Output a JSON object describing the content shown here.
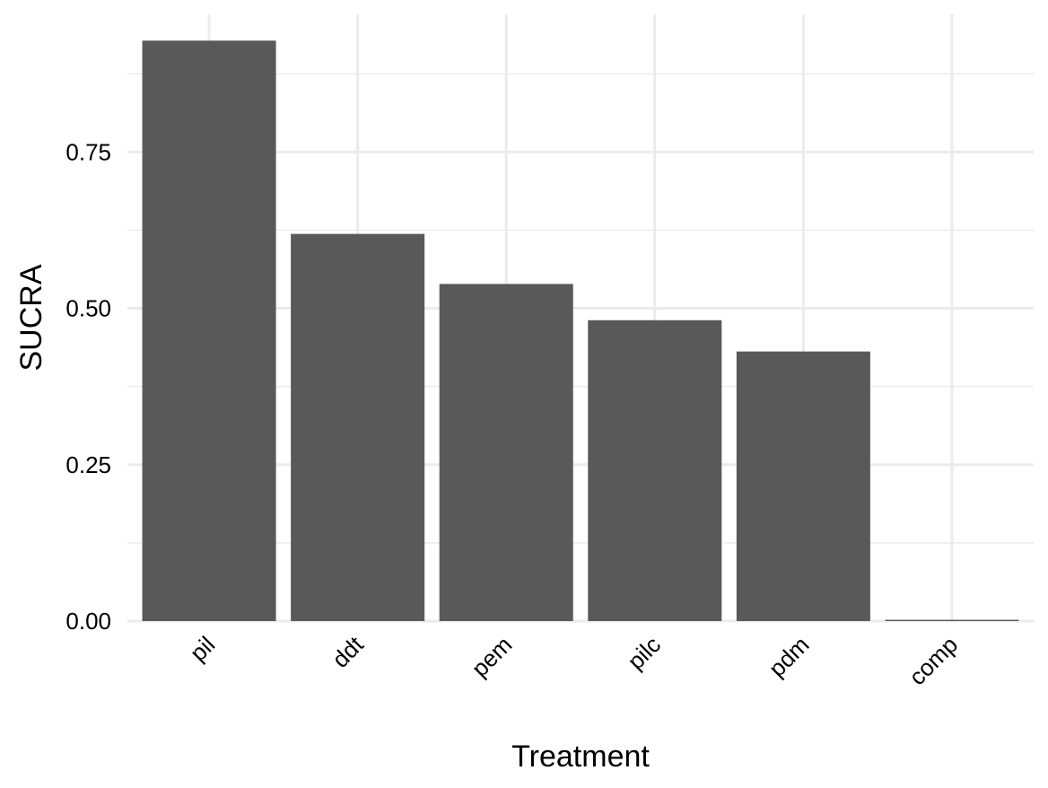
{
  "chart_data": {
    "type": "bar",
    "categories": [
      "pil",
      "ddt",
      "pem",
      "pilc",
      "pdm",
      "comp"
    ],
    "values": [
      0.928,
      0.619,
      0.539,
      0.481,
      0.431,
      0.002
    ],
    "xlabel": "Treatment",
    "ylabel": "SUCRA",
    "ylim": [
      0,
      0.97
    ],
    "yticks": [
      "0.00",
      "0.25",
      "0.50",
      "0.75"
    ],
    "ytick_values": [
      0,
      0.25,
      0.5,
      0.75
    ],
    "grid": true,
    "bar_color": "#595959",
    "grid_color": "#ebebeb"
  }
}
